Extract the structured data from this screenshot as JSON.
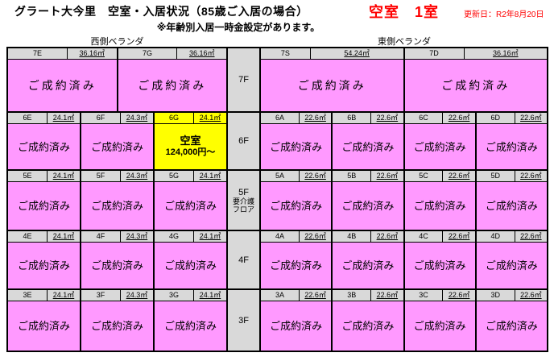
{
  "header": {
    "title": "グラート大今里　空室・入居状況（85歳ご入居の場合）",
    "vacancy_summary": "空室　1室",
    "updated": "更新日：R2年8月20日",
    "note": "※年齢別入居一時金設定があります。",
    "west_veranda": "西側ベランダ",
    "east_veranda": "東側ベランダ"
  },
  "legend": {
    "occupied_label": "ご成約済み",
    "vacant_label": "空室",
    "vacant_price": "124,000円～"
  },
  "colors": {
    "occupied_bg": "#ff99ff",
    "vacant_bg": "#ffff00",
    "header_bg": "#d9d9d9",
    "accent_red": "#ff0000",
    "border": "#000000"
  },
  "floors": [
    {
      "label": "7F",
      "sublabel": [],
      "west": [
        {
          "no": "7E",
          "size": "36.16㎡",
          "status": "occupied"
        },
        {
          "no": "7G",
          "size": "36.16㎡",
          "status": "occupied"
        }
      ],
      "east": [
        {
          "no": "7S",
          "size": "54.24㎡",
          "status": "occupied"
        },
        {
          "no": "7D",
          "size": "36.16㎡",
          "status": "occupied"
        }
      ]
    },
    {
      "label": "6F",
      "sublabel": [],
      "west": [
        {
          "no": "6E",
          "size": "24.1㎡",
          "status": "occupied"
        },
        {
          "no": "6F",
          "size": "24.3㎡",
          "status": "occupied"
        },
        {
          "no": "6G",
          "size": "24.1㎡",
          "status": "vacant"
        }
      ],
      "east": [
        {
          "no": "6A",
          "size": "22.6㎡",
          "status": "occupied"
        },
        {
          "no": "6B",
          "size": "22.6㎡",
          "status": "occupied"
        },
        {
          "no": "6C",
          "size": "22.6㎡",
          "status": "occupied"
        },
        {
          "no": "6D",
          "size": "22.6㎡",
          "status": "occupied"
        }
      ]
    },
    {
      "label": "5F",
      "sublabel": [
        "要介護",
        "フロア"
      ],
      "west": [
        {
          "no": "5E",
          "size": "24.1㎡",
          "status": "occupied"
        },
        {
          "no": "5F",
          "size": "24.3㎡",
          "status": "occupied"
        },
        {
          "no": "5G",
          "size": "24.1㎡",
          "status": "occupied"
        }
      ],
      "east": [
        {
          "no": "5A",
          "size": "22.6㎡",
          "status": "occupied"
        },
        {
          "no": "5B",
          "size": "22.6㎡",
          "status": "occupied"
        },
        {
          "no": "5C",
          "size": "22.6㎡",
          "status": "occupied"
        },
        {
          "no": "5D",
          "size": "22.6㎡",
          "status": "occupied"
        }
      ]
    },
    {
      "label": "4F",
      "sublabel": [],
      "west": [
        {
          "no": "4E",
          "size": "24.1㎡",
          "status": "occupied"
        },
        {
          "no": "4F",
          "size": "24.3㎡",
          "status": "occupied"
        },
        {
          "no": "4G",
          "size": "24.1㎡",
          "status": "occupied"
        }
      ],
      "east": [
        {
          "no": "4A",
          "size": "22.6㎡",
          "status": "occupied"
        },
        {
          "no": "4B",
          "size": "22.6㎡",
          "status": "occupied"
        },
        {
          "no": "4C",
          "size": "22.6㎡",
          "status": "occupied"
        },
        {
          "no": "4D",
          "size": "22.6㎡",
          "status": "occupied"
        }
      ]
    },
    {
      "label": "3F",
      "sublabel": [],
      "west": [
        {
          "no": "3E",
          "size": "24.1㎡",
          "status": "occupied"
        },
        {
          "no": "3F",
          "size": "24.3㎡",
          "status": "occupied"
        },
        {
          "no": "3G",
          "size": "24.1㎡",
          "status": "occupied"
        }
      ],
      "east": [
        {
          "no": "3A",
          "size": "22.6㎡",
          "status": "occupied"
        },
        {
          "no": "3B",
          "size": "22.6㎡",
          "status": "occupied"
        },
        {
          "no": "3C",
          "size": "22.6㎡",
          "status": "occupied"
        },
        {
          "no": "3D",
          "size": "22.6㎡",
          "status": "occupied"
        }
      ]
    }
  ]
}
